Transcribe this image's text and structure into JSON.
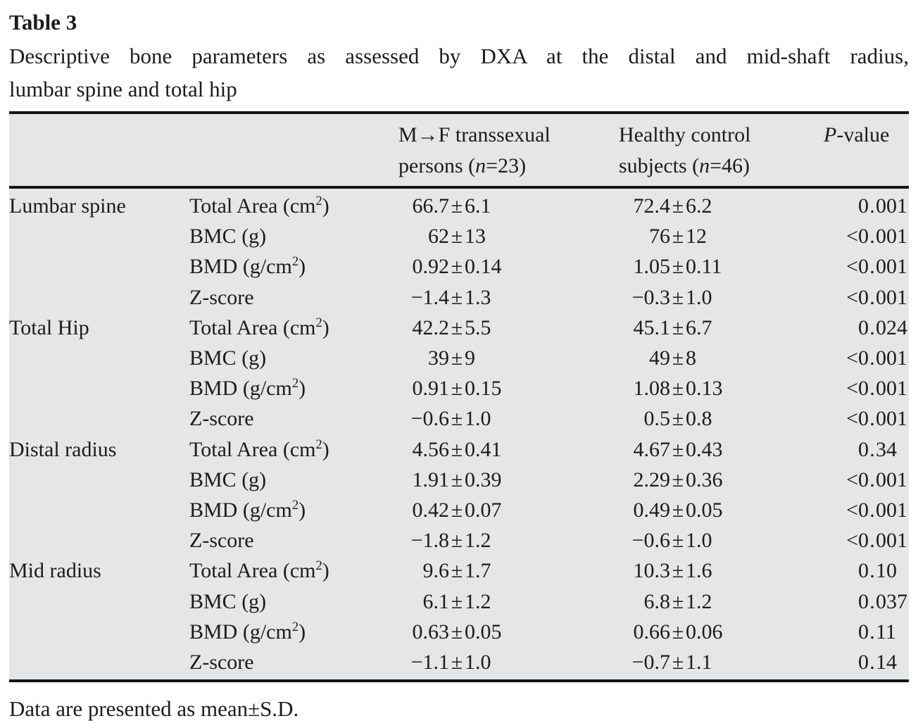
{
  "colors": {
    "page_bg": "#ffffff",
    "table_shade": "#e5e6e7",
    "rule": "#141414",
    "text": "#1c1c1c"
  },
  "label": "Table 3",
  "caption": "Descriptive bone parameters as assessed by DXA at the distal and mid-shaft radius,\nlumbar spine and total hip",
  "footnote": "Data are presented as mean±S.D.",
  "table": {
    "header": {
      "region_col": "",
      "parameter_col": "",
      "mf_col": "M→F transsexual\npersons (*n*=23)",
      "control_col": "Healthy control\nsubjects (*n*=46)",
      "pvalue_col": "*P*-value"
    },
    "sections": [
      {
        "region": "Lumbar spine",
        "rows": [
          {
            "param": "Total Area (cm^2)",
            "mf": "66.7±6.1",
            "ctl": "72.4±6.2",
            "p": "0.001"
          },
          {
            "param": "BMC (g)",
            "mf": "62±13",
            "ctl": "76±12",
            "p": "<0.001"
          },
          {
            "param": "BMD (g/cm^2)",
            "mf": "0.92±0.14",
            "ctl": "1.05±0.11",
            "p": "<0.001"
          },
          {
            "param": "Z-score",
            "mf": "−1.4±1.3",
            "ctl": "−0.3±1.0",
            "p": "<0.001"
          }
        ]
      },
      {
        "region": "Total Hip",
        "rows": [
          {
            "param": "Total Area (cm^2)",
            "mf": "42.2±5.5",
            "ctl": "45.1±6.7",
            "p": "0.024"
          },
          {
            "param": "BMC (g)",
            "mf": "39±9",
            "ctl": "49±8",
            "p": "<0.001"
          },
          {
            "param": "BMD (g/cm^2)",
            "mf": "0.91±0.15",
            "ctl": "1.08±0.13",
            "p": "<0.001"
          },
          {
            "param": "Z-score",
            "mf": "−0.6±1.0",
            "ctl": "0.5±0.8",
            "p": "<0.001"
          }
        ]
      },
      {
        "region": "Distal radius",
        "rows": [
          {
            "param": "Total Area (cm^2)",
            "mf": "4.56±0.41",
            "ctl": "4.67±0.43",
            "p": "0.34"
          },
          {
            "param": "BMC (g)",
            "mf": "1.91±0.39",
            "ctl": "2.29±0.36",
            "p": "<0.001"
          },
          {
            "param": "BMD (g/cm^2)",
            "mf": "0.42±0.07",
            "ctl": "0.49±0.05",
            "p": "<0.001"
          },
          {
            "param": "Z-score",
            "mf": "−1.8±1.2",
            "ctl": "−0.6±1.0",
            "p": "<0.001"
          }
        ]
      },
      {
        "region": "Mid radius",
        "rows": [
          {
            "param": "Total Area (cm^2)",
            "mf": "9.6±1.7",
            "ctl": "10.3±1.6",
            "p": "0.10"
          },
          {
            "param": "BMC (g)",
            "mf": "6.1±1.2",
            "ctl": "6.8±1.2",
            "p": "0.037"
          },
          {
            "param": "BMD (g/cm^2)",
            "mf": "0.63±0.05",
            "ctl": "0.66±0.06",
            "p": "0.11"
          },
          {
            "param": "Z-score",
            "mf": "−1.1±1.0",
            "ctl": "−0.7±1.1",
            "p": "0.14"
          }
        ]
      }
    ]
  }
}
